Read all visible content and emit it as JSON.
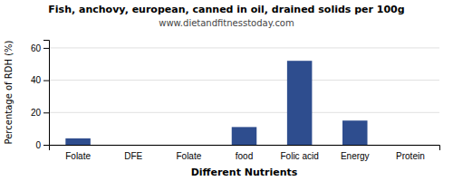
{
  "chart_data": {
    "type": "bar",
    "title": "Fish, anchovy, european, canned in oil, drained solids per 100g",
    "subtitle": "www.dietandfitnesstoday.com",
    "xlabel": "Different Nutrients",
    "ylabel": "Percentage of RDH (%)",
    "categories": [
      "Folate",
      "DFE",
      "Folate",
      "food",
      "Folic acid",
      "Energy",
      "Protein"
    ],
    "values": [
      4,
      0,
      0,
      11,
      52,
      15,
      0
    ],
    "color": "#2e4d8e",
    "ylim": [
      0,
      65
    ],
    "yticks": [
      0,
      20,
      40,
      60
    ],
    "grid": true
  }
}
